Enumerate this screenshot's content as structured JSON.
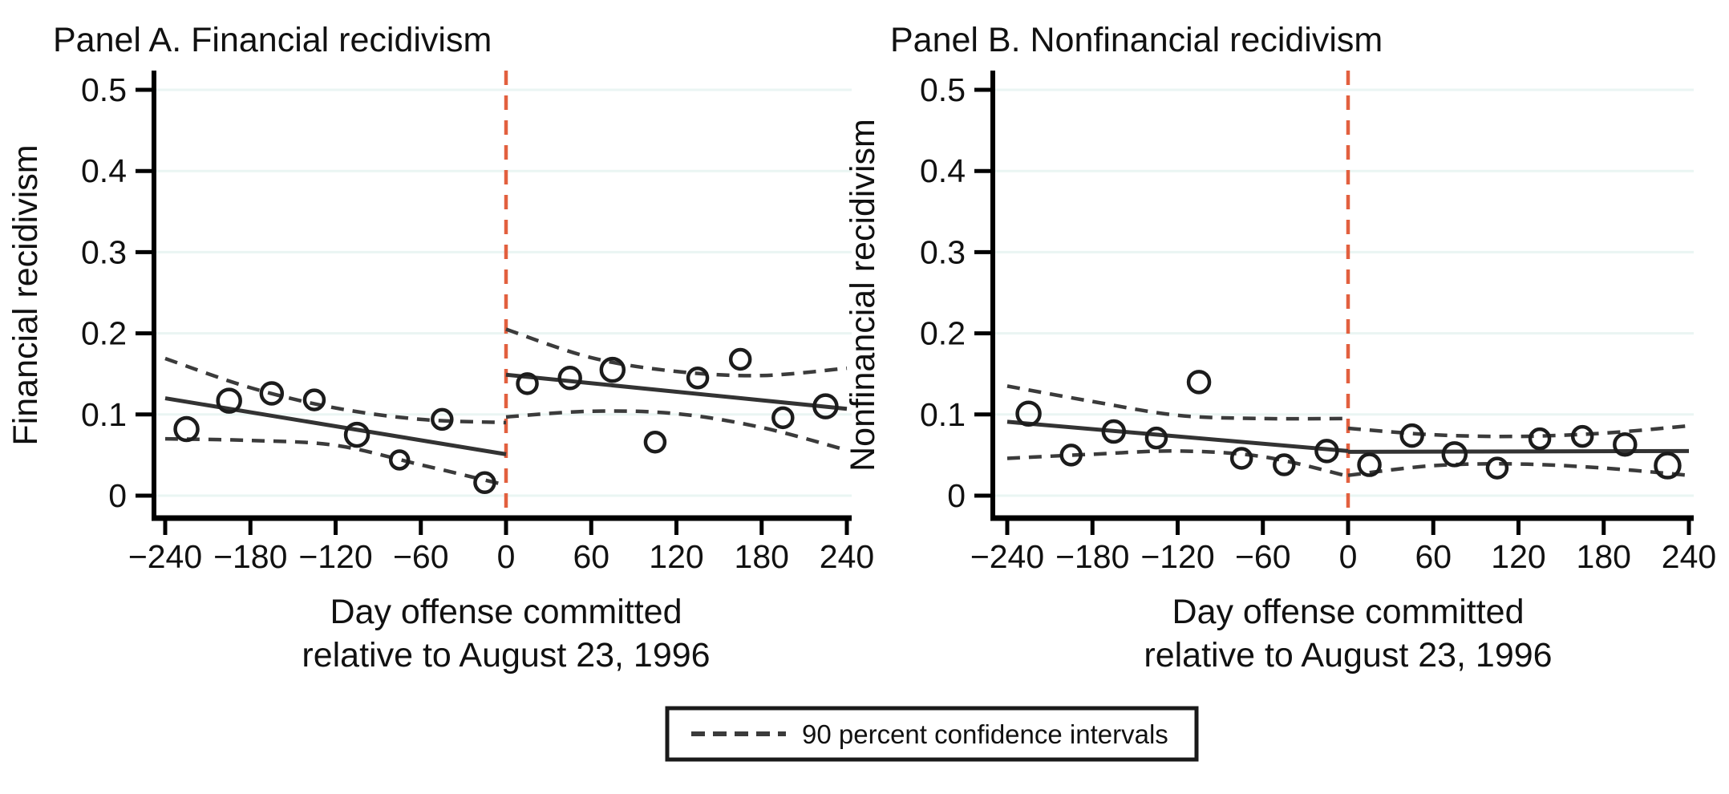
{
  "figure": {
    "background": "#ffffff",
    "colors": {
      "cutoff_line": "#e2603f",
      "gridline": "#eaf5f3",
      "axis": "#000000",
      "fit_line": "#333333",
      "ci_line": "#3b3b3b",
      "marker_stroke": "#1c1c1c",
      "text": "#111111",
      "legend_border": "#1a1a1a"
    },
    "legend": {
      "sample": "dashed-line",
      "label": "90 percent confidence intervals"
    }
  },
  "chart_data": [
    {
      "type": "scatter",
      "title": "Panel A. Financial recidivism",
      "ylabel": "Financial recidivism",
      "xlabel_line1": "Day offense committed",
      "xlabel_line2": "relative to August 23, 1996",
      "xlim": [
        -252,
        250
      ],
      "ylim": [
        -0.015,
        0.52
      ],
      "xticks": [
        -240,
        -180,
        -120,
        -60,
        0,
        60,
        120,
        180,
        240
      ],
      "xtick_labels": [
        "−240",
        "−180",
        "−120",
        "−60",
        "0",
        "60",
        "120",
        "180",
        "240"
      ],
      "yticks": [
        0,
        0.1,
        0.2,
        0.3,
        0.4,
        0.5
      ],
      "ytick_labels": [
        "0",
        "0.1",
        "0.2",
        "0.3",
        "0.4",
        "0.5"
      ],
      "grid": true,
      "cutoff_x": 0,
      "points": [
        {
          "x": -225,
          "y": 0.082,
          "r": 14
        },
        {
          "x": -195,
          "y": 0.117,
          "r": 14
        },
        {
          "x": -165,
          "y": 0.126,
          "r": 13
        },
        {
          "x": -135,
          "y": 0.118,
          "r": 12
        },
        {
          "x": -105,
          "y": 0.075,
          "r": 14
        },
        {
          "x": -75,
          "y": 0.044,
          "r": 11
        },
        {
          "x": -45,
          "y": 0.094,
          "r": 12
        },
        {
          "x": -15,
          "y": 0.016,
          "r": 12
        },
        {
          "x": 15,
          "y": 0.138,
          "r": 12
        },
        {
          "x": 45,
          "y": 0.145,
          "r": 13
        },
        {
          "x": 75,
          "y": 0.155,
          "r": 14
        },
        {
          "x": 105,
          "y": 0.066,
          "r": 12
        },
        {
          "x": 135,
          "y": 0.145,
          "r": 12
        },
        {
          "x": 165,
          "y": 0.168,
          "r": 12
        },
        {
          "x": 195,
          "y": 0.096,
          "r": 12
        },
        {
          "x": 225,
          "y": 0.11,
          "r": 14
        }
      ],
      "fit_lines": [
        {
          "x1": -240,
          "y1": 0.12,
          "x2": 0,
          "y2": 0.051
        },
        {
          "x1": 0,
          "y1": 0.149,
          "x2": 240,
          "y2": 0.107
        }
      ],
      "ci_curves": [
        {
          "side": "left-upper",
          "pts": [
            [
              -240,
              0.169
            ],
            [
              -180,
              0.133
            ],
            [
              -120,
              0.108
            ],
            [
              -60,
              0.094
            ],
            [
              0,
              0.09
            ]
          ]
        },
        {
          "side": "left-lower",
          "pts": [
            [
              -240,
              0.07
            ],
            [
              -180,
              0.068
            ],
            [
              -120,
              0.062
            ],
            [
              -60,
              0.038
            ],
            [
              0,
              0.013
            ]
          ]
        },
        {
          "side": "right-upper",
          "pts": [
            [
              0,
              0.205
            ],
            [
              60,
              0.17
            ],
            [
              120,
              0.153
            ],
            [
              180,
              0.148
            ],
            [
              240,
              0.157
            ]
          ]
        },
        {
          "side": "right-lower",
          "pts": [
            [
              0,
              0.097
            ],
            [
              60,
              0.104
            ],
            [
              120,
              0.101
            ],
            [
              180,
              0.084
            ],
            [
              240,
              0.056
            ]
          ]
        }
      ]
    },
    {
      "type": "scatter",
      "title": "Panel B. Nonfinancial recidivism",
      "ylabel": "Nonfinancial recidivism",
      "xlabel_line1": "Day offense committed",
      "xlabel_line2": "relative to August 23, 1996",
      "xlim": [
        -252,
        250
      ],
      "ylim": [
        -0.015,
        0.52
      ],
      "xticks": [
        -240,
        -180,
        -120,
        -60,
        0,
        60,
        120,
        180,
        240
      ],
      "xtick_labels": [
        "−240",
        "−180",
        "−120",
        "−60",
        "0",
        "60",
        "120",
        "180",
        "240"
      ],
      "yticks": [
        0,
        0.1,
        0.2,
        0.3,
        0.4,
        0.5
      ],
      "ytick_labels": [
        "0",
        "0.1",
        "0.2",
        "0.3",
        "0.4",
        "0.5"
      ],
      "grid": true,
      "cutoff_x": 0,
      "points": [
        {
          "x": -225,
          "y": 0.101,
          "r": 14
        },
        {
          "x": -195,
          "y": 0.05,
          "r": 12
        },
        {
          "x": -165,
          "y": 0.079,
          "r": 13
        },
        {
          "x": -135,
          "y": 0.071,
          "r": 12
        },
        {
          "x": -105,
          "y": 0.14,
          "r": 13
        },
        {
          "x": -75,
          "y": 0.046,
          "r": 12
        },
        {
          "x": -45,
          "y": 0.038,
          "r": 12
        },
        {
          "x": -15,
          "y": 0.055,
          "r": 13
        },
        {
          "x": 15,
          "y": 0.038,
          "r": 13
        },
        {
          "x": 45,
          "y": 0.074,
          "r": 13
        },
        {
          "x": 75,
          "y": 0.051,
          "r": 14
        },
        {
          "x": 105,
          "y": 0.034,
          "r": 12
        },
        {
          "x": 135,
          "y": 0.07,
          "r": 12
        },
        {
          "x": 165,
          "y": 0.073,
          "r": 12
        },
        {
          "x": 195,
          "y": 0.063,
          "r": 13
        },
        {
          "x": 225,
          "y": 0.037,
          "r": 15
        }
      ],
      "fit_lines": [
        {
          "x1": -240,
          "y1": 0.091,
          "x2": 0,
          "y2": 0.055
        },
        {
          "x1": 0,
          "y1": 0.054,
          "x2": 240,
          "y2": 0.055
        }
      ],
      "ci_curves": [
        {
          "side": "left-upper",
          "pts": [
            [
              -240,
              0.135
            ],
            [
              -180,
              0.116
            ],
            [
              -120,
              0.099
            ],
            [
              -60,
              0.095
            ],
            [
              0,
              0.095
            ]
          ]
        },
        {
          "side": "left-lower",
          "pts": [
            [
              -240,
              0.046
            ],
            [
              -180,
              0.051
            ],
            [
              -120,
              0.055
            ],
            [
              -60,
              0.048
            ],
            [
              0,
              0.024
            ]
          ]
        },
        {
          "side": "right-upper",
          "pts": [
            [
              0,
              0.083
            ],
            [
              60,
              0.075
            ],
            [
              120,
              0.073
            ],
            [
              180,
              0.077
            ],
            [
              240,
              0.086
            ]
          ]
        },
        {
          "side": "right-lower",
          "pts": [
            [
              0,
              0.025
            ],
            [
              60,
              0.037
            ],
            [
              120,
              0.039
            ],
            [
              180,
              0.034
            ],
            [
              240,
              0.025
            ]
          ]
        }
      ]
    }
  ]
}
